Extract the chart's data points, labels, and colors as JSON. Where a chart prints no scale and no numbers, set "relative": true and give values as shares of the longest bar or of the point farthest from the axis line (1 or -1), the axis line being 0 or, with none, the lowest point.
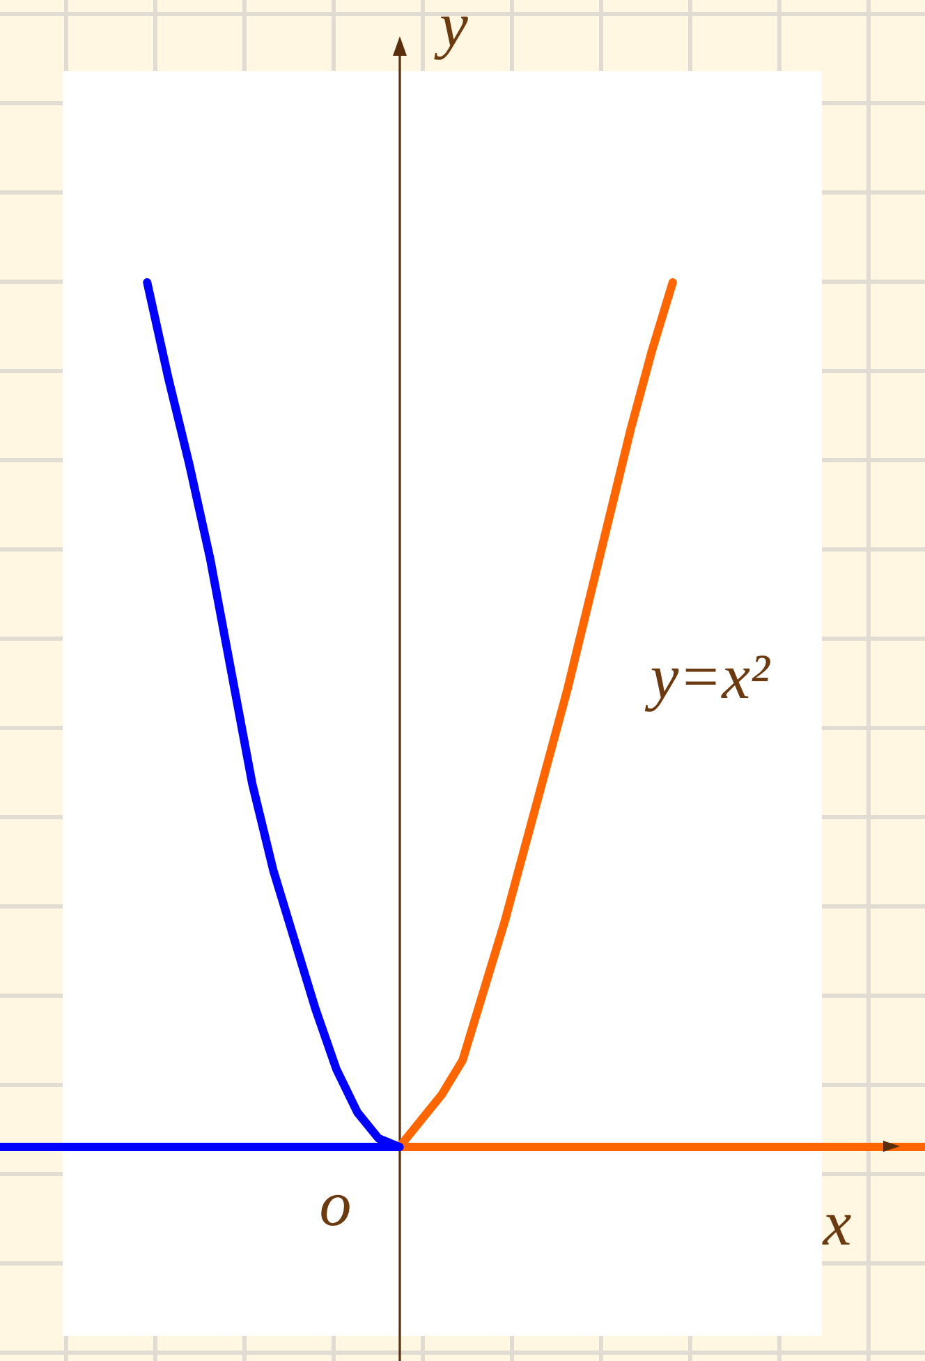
{
  "chart_data": {
    "type": "line",
    "relative": true,
    "xlabel": "x",
    "ylabel": "y",
    "annotations": [
      "o",
      "y=x²"
    ],
    "categories": [
      null,
      null,
      null,
      null,
      null,
      null,
      null,
      null,
      null,
      null,
      null,
      null,
      null,
      null,
      null,
      null,
      null,
      null,
      null,
      null,
      null,
      null,
      null,
      null,
      null,
      null,
      null,
      null,
      null,
      null,
      null,
      null,
      null,
      null,
      null,
      null,
      null,
      null,
      null,
      null,
      null,
      null,
      null,
      null,
      null
    ],
    "series": [
      {
        "color": "#0000ff",
        "values": [
          null,
          null,
          null,
          null,
          null,
          null,
          null,
          1,
          0.89,
          0.79,
          0.68,
          0.55,
          0.42,
          0.32,
          0.24,
          0.16,
          0.09,
          0.04,
          0.01,
          0,
          null,
          null,
          null,
          null,
          null,
          null,
          null,
          null,
          null,
          null,
          null,
          null,
          null,
          null,
          null,
          null,
          null,
          null,
          null,
          null,
          null,
          null,
          null,
          null,
          null
        ]
      },
      {
        "color": "#0000ff",
        "values": [
          0,
          0,
          0,
          0,
          0,
          0,
          0,
          0,
          0,
          0,
          0,
          0,
          0,
          0,
          0,
          0,
          0,
          0,
          0,
          0,
          null,
          null,
          null,
          null,
          null,
          null,
          null,
          null,
          null,
          null,
          null,
          null,
          null,
          null,
          null,
          null,
          null,
          null,
          null,
          null,
          null,
          null,
          null,
          null,
          null
        ]
      },
      {
        "color": "#ff6600",
        "values": [
          null,
          null,
          null,
          null,
          null,
          null,
          null,
          null,
          null,
          null,
          null,
          null,
          null,
          null,
          null,
          null,
          null,
          null,
          null,
          0,
          0.03,
          0.06,
          0.1,
          0.18,
          0.26,
          0.35,
          0.44,
          0.53,
          0.63,
          0.73,
          0.83,
          0.92,
          1,
          null,
          null,
          null,
          null,
          null,
          null,
          null,
          null,
          null,
          null,
          null,
          null
        ]
      },
      {
        "color": "#ff6600",
        "values": [
          null,
          null,
          null,
          null,
          null,
          null,
          null,
          null,
          null,
          null,
          null,
          null,
          null,
          null,
          null,
          null,
          null,
          null,
          null,
          0,
          0,
          0,
          0,
          0,
          0,
          0,
          0,
          0,
          0,
          0,
          0,
          0,
          0,
          0,
          0,
          0,
          0,
          0,
          0,
          0,
          0,
          0,
          0,
          0,
          0
        ]
      }
    ]
  }
}
